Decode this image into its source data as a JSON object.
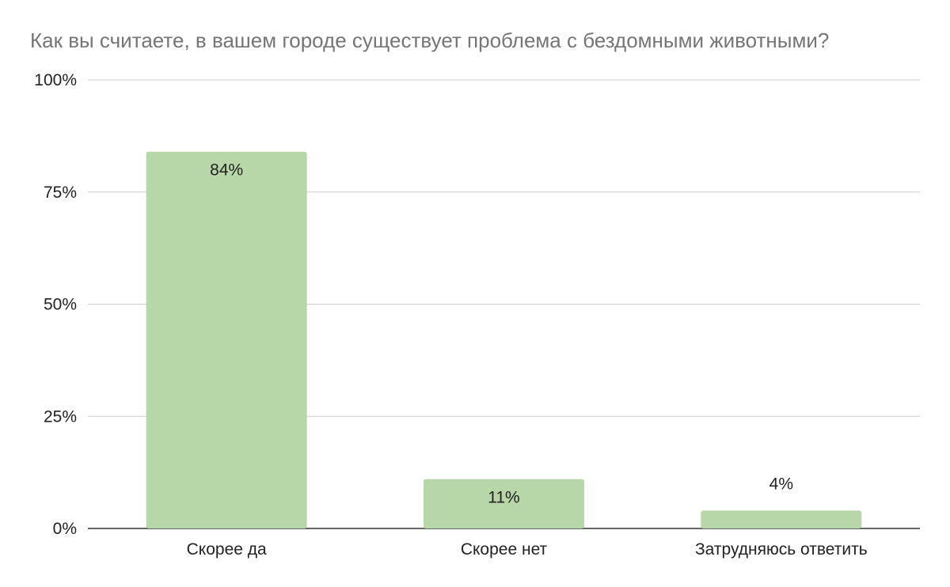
{
  "chart_data": {
    "type": "bar",
    "title": "Как вы считаете, в вашем городе существует проблема с бездомными животными?",
    "xlabel": "",
    "ylabel": "",
    "categories": [
      "Скорее да",
      "Скорее нет",
      "Затрудняюсь ответить"
    ],
    "values": [
      84,
      11,
      4
    ],
    "data_labels": [
      "84%",
      "11%",
      "4%"
    ],
    "ylim": [
      0,
      100
    ],
    "yticks": [
      0,
      25,
      50,
      75,
      100
    ],
    "ytick_labels": [
      "0%",
      "25%",
      "50%",
      "75%",
      "100%"
    ],
    "grid": true,
    "legend": "none",
    "bar_color": "#b7d7a8",
    "grid_color": "#cccccc",
    "axis_color": "#333333"
  }
}
